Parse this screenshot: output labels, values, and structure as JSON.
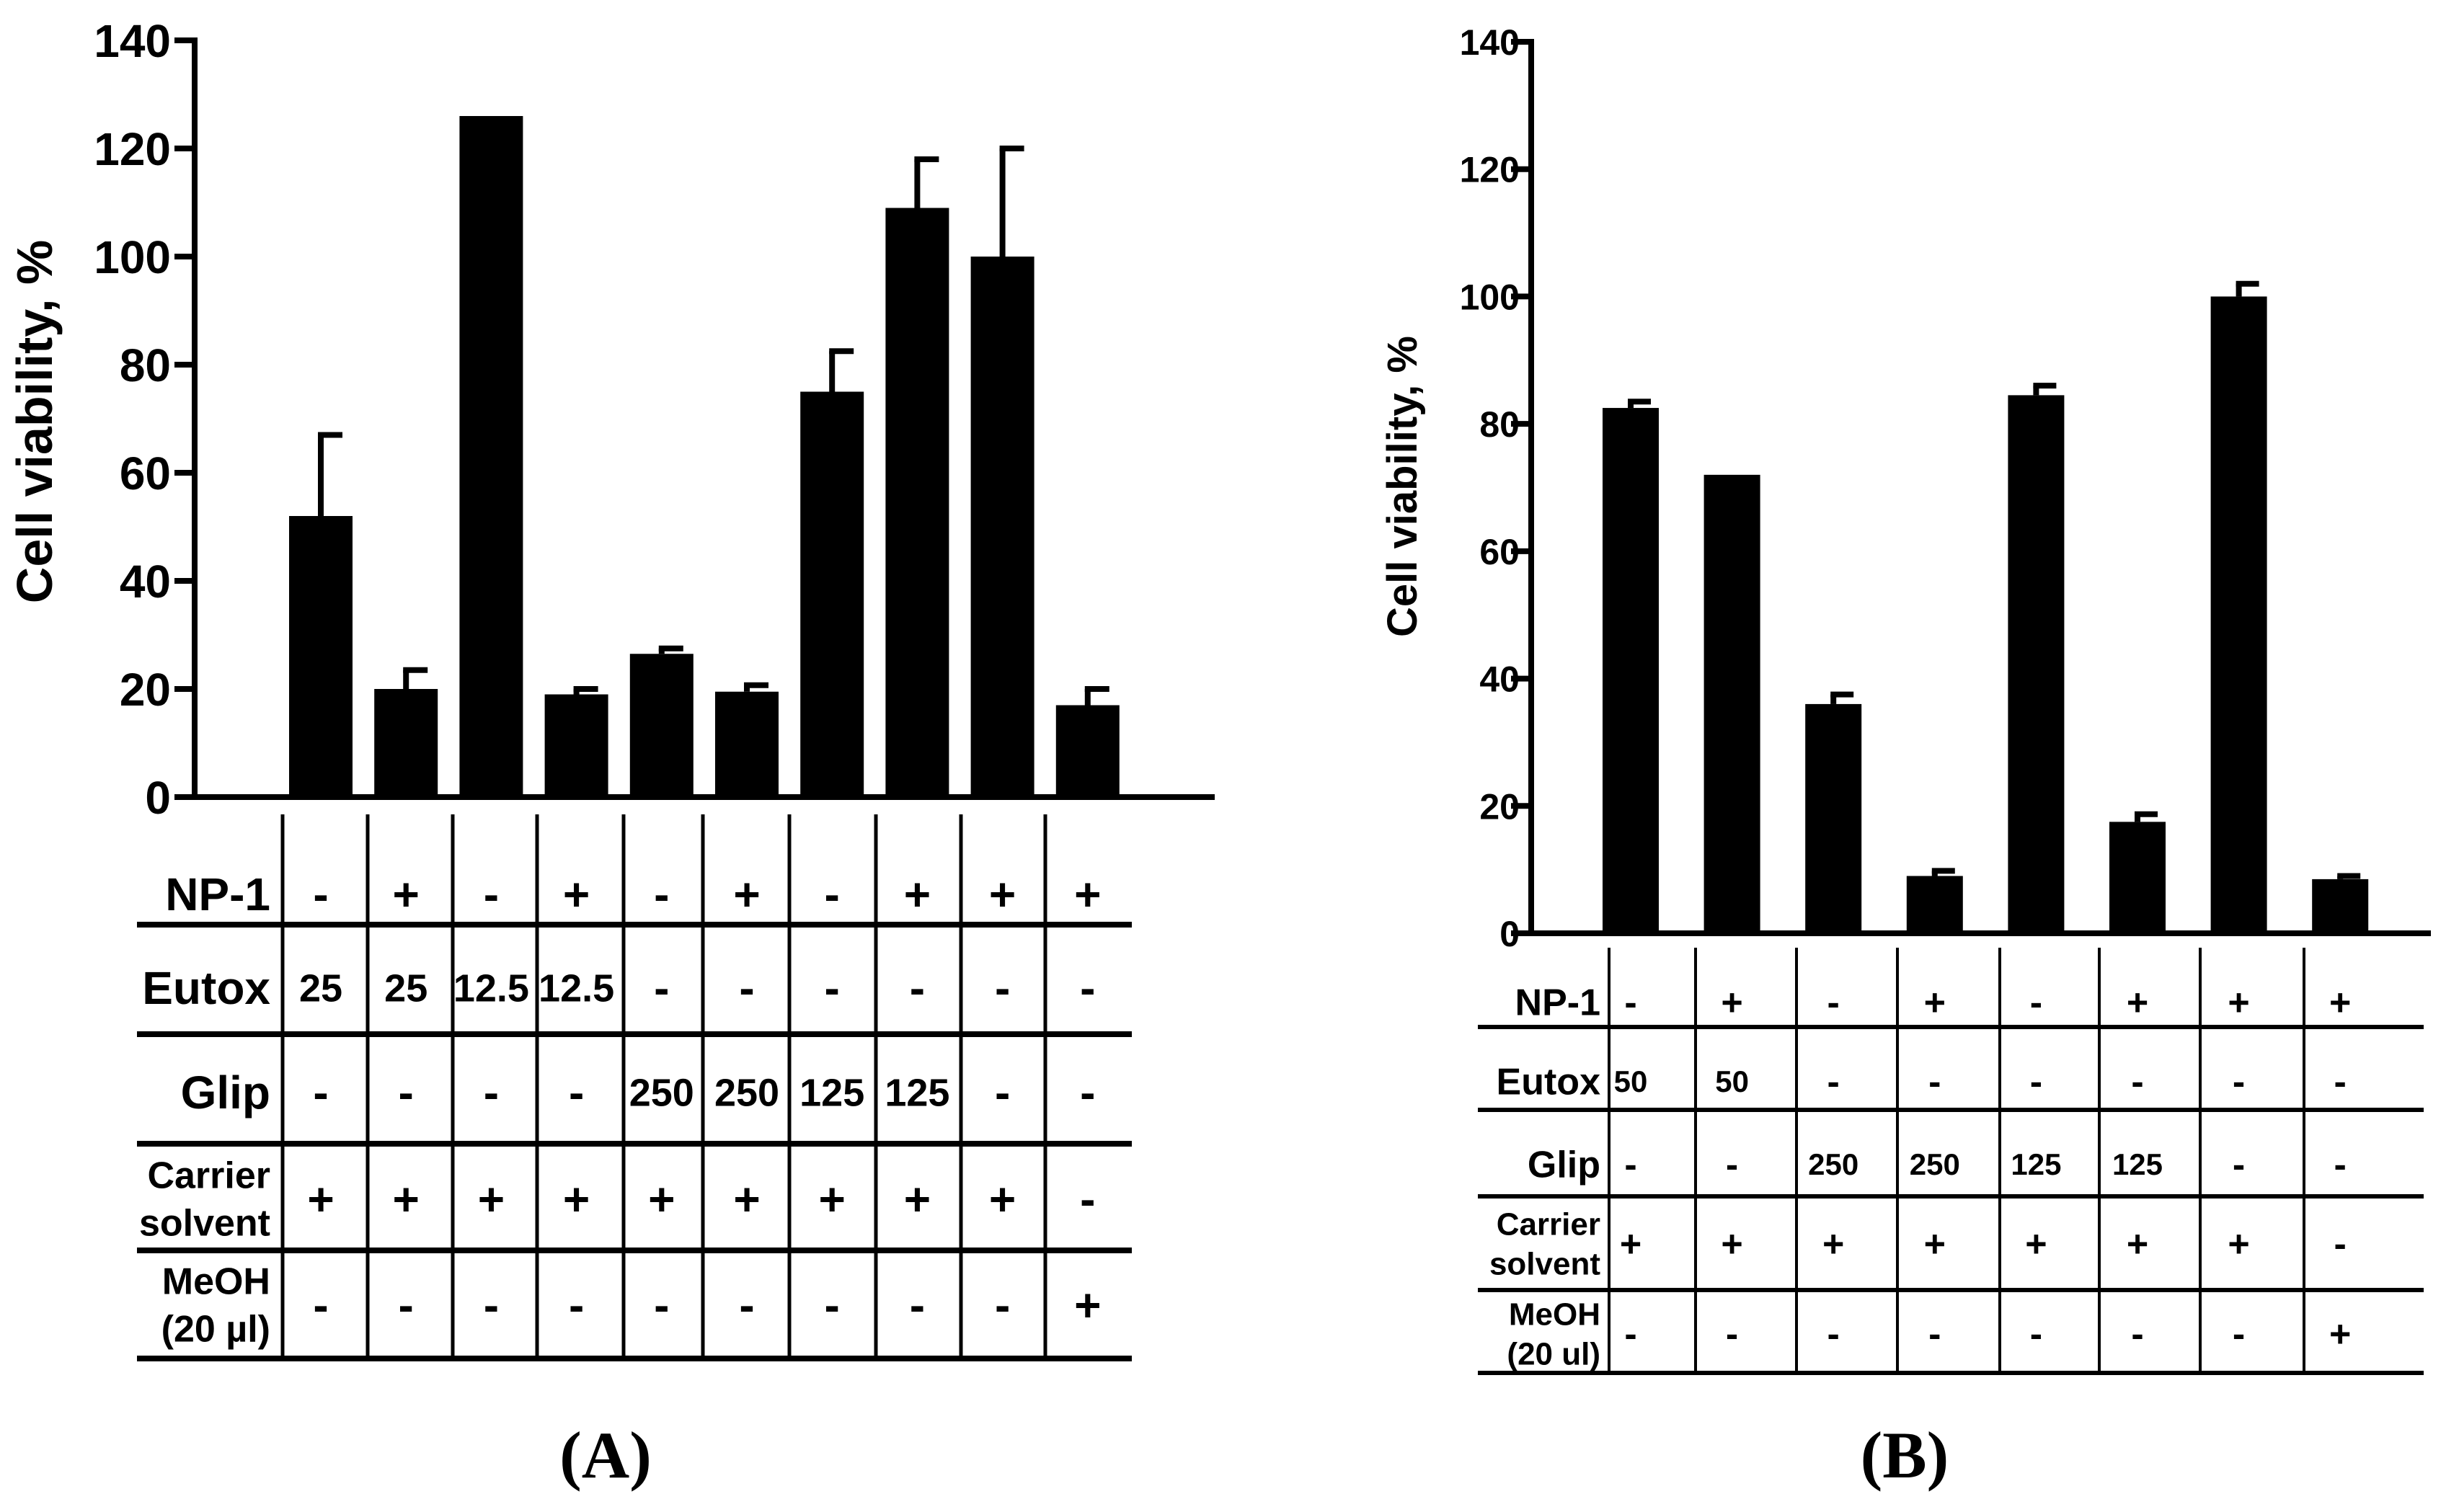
{
  "chart_data": [
    {
      "type": "bar",
      "panel_label": "(A)",
      "ylabel": "Cell viability, %",
      "ylim": [
        0,
        140
      ],
      "yticks": [
        "0",
        "20",
        "40",
        "60",
        "80",
        "100",
        "120",
        "140"
      ],
      "values": [
        52,
        20,
        126,
        19,
        26.5,
        19.5,
        75,
        109,
        100,
        17
      ],
      "errors": [
        15,
        3.5,
        0,
        1,
        1,
        1.2,
        7.5,
        9,
        20,
        3
      ],
      "table": {
        "rows": [
          {
            "label": [
              "NP-1"
            ],
            "cells": [
              "-",
              "+",
              "-",
              "+",
              "-",
              "+",
              "-",
              "+",
              "+",
              "+"
            ]
          },
          {
            "label": [
              "Eutox"
            ],
            "cells": [
              "25",
              "25",
              "12.5",
              "12.5",
              "-",
              "-",
              "-",
              "-",
              "-",
              "-"
            ]
          },
          {
            "label": [
              "Glip"
            ],
            "cells": [
              "-",
              "-",
              "-",
              "-",
              "250",
              "250",
              "125",
              "125",
              "-",
              "-"
            ]
          },
          {
            "label": [
              "Carrier",
              "solvent"
            ],
            "cells": [
              "+",
              "+",
              "+",
              "+",
              "+",
              "+",
              "+",
              "+",
              "+",
              "-"
            ]
          },
          {
            "label": [
              "MeOH",
              "(20 µl)"
            ],
            "cells": [
              "-",
              "-",
              "-",
              "-",
              "-",
              "-",
              "-",
              "-",
              "-",
              "+"
            ]
          }
        ]
      }
    },
    {
      "type": "bar",
      "panel_label": "(B)",
      "ylabel": "Cell viability, %",
      "ylim": [
        0,
        140
      ],
      "yticks": [
        "0",
        "20",
        "40",
        "60",
        "80",
        "100",
        "120",
        "140"
      ],
      "values": [
        82.5,
        72,
        36,
        9,
        84.5,
        17.5,
        100,
        8.5
      ],
      "errors": [
        1,
        0,
        1.5,
        0.8,
        1.5,
        1.2,
        2,
        0.5
      ],
      "table": {
        "rows": [
          {
            "label": [
              "NP-1"
            ],
            "cells": [
              "-",
              "+",
              "-",
              "+",
              "-",
              "+",
              "+",
              "+"
            ]
          },
          {
            "label": [
              "Eutox"
            ],
            "cells": [
              "50",
              "50",
              "-",
              "-",
              "-",
              "-",
              "-",
              "-"
            ]
          },
          {
            "label": [
              "Glip"
            ],
            "cells": [
              "-",
              "-",
              "250",
              "250",
              "125",
              "125",
              "-",
              "-"
            ]
          },
          {
            "label": [
              "Carrier",
              "solvent"
            ],
            "cells": [
              "+",
              "+",
              "+",
              "+",
              "+",
              "+",
              "+",
              "-"
            ]
          },
          {
            "label": [
              "MeOH",
              "(20 ul)"
            ],
            "cells": [
              "-",
              "-",
              "-",
              "-",
              "-",
              "-",
              "-",
              "+"
            ]
          }
        ]
      }
    }
  ]
}
